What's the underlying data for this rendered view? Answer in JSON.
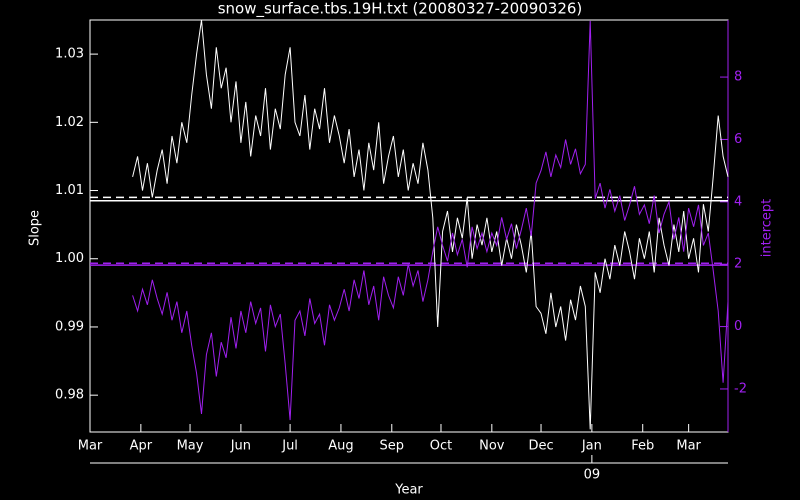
{
  "chart_data": {
    "type": "line",
    "title": "snow_surface.tbs.19H.txt (20080327-20090326)",
    "x_label": "Year",
    "y_label": "Slope",
    "y2_label": "intercept",
    "xlim": [
      0,
      389
    ],
    "xticks": [
      {
        "value": 0,
        "label": "Mar"
      },
      {
        "value": 31,
        "label": "Apr"
      },
      {
        "value": 61,
        "label": "May"
      },
      {
        "value": 92,
        "label": "Jun"
      },
      {
        "value": 122,
        "label": "Jul"
      },
      {
        "value": 153,
        "label": "Aug"
      },
      {
        "value": 184,
        "label": "Sep"
      },
      {
        "value": 214,
        "label": "Oct"
      },
      {
        "value": 245,
        "label": "Nov"
      },
      {
        "value": 275,
        "label": "Dec"
      },
      {
        "value": 306,
        "label": "Jan"
      },
      {
        "value": 337,
        "label": "Feb"
      },
      {
        "value": 365,
        "label": "Mar"
      }
    ],
    "x2ticks": [
      {
        "value": 306,
        "label": "09"
      }
    ],
    "ylim": [
      0.9746,
      1.035
    ],
    "yticks": [
      0.98,
      0.99,
      {
        "value": 1.0,
        "label": "1.00"
      },
      1.01,
      1.02,
      1.03
    ],
    "y2lim": [
      -3.38,
      9.83
    ],
    "y2ticks": [
      -2,
      0,
      2,
      4,
      6,
      8
    ],
    "y2_color": "#a020f0",
    "x": [
      26,
      29,
      32,
      35,
      38,
      41,
      44,
      47,
      50,
      53,
      56,
      59,
      62,
      65,
      68,
      71,
      74,
      77,
      80,
      83,
      86,
      89,
      92,
      95,
      98,
      101,
      104,
      107,
      110,
      113,
      116,
      119,
      122,
      125,
      128,
      131,
      134,
      137,
      140,
      143,
      146,
      149,
      152,
      155,
      158,
      161,
      164,
      167,
      170,
      173,
      176,
      179,
      182,
      185,
      188,
      191,
      194,
      197,
      200,
      203,
      206,
      209,
      212,
      215,
      218,
      221,
      224,
      227,
      230,
      233,
      236,
      239,
      242,
      245,
      248,
      251,
      254,
      257,
      260,
      263,
      266,
      269,
      272,
      275,
      278,
      281,
      284,
      287,
      290,
      293,
      296,
      299,
      302,
      305,
      308,
      311,
      314,
      317,
      320,
      323,
      326,
      329,
      332,
      335,
      338,
      341,
      344,
      347,
      350,
      353,
      356,
      359,
      362,
      365,
      368,
      371,
      374,
      377,
      380,
      383,
      386,
      389
    ],
    "series": [
      {
        "name": "Slope",
        "color": "#ffffff",
        "values": [
          1.012,
          1.015,
          1.01,
          1.014,
          1.009,
          1.013,
          1.016,
          1.011,
          1.018,
          1.014,
          1.02,
          1.017,
          1.024,
          1.03,
          1.035,
          1.027,
          1.022,
          1.031,
          1.025,
          1.028,
          1.02,
          1.026,
          1.017,
          1.023,
          1.015,
          1.021,
          1.018,
          1.025,
          1.016,
          1.022,
          1.019,
          1.027,
          1.031,
          1.02,
          1.018,
          1.024,
          1.016,
          1.022,
          1.019,
          1.025,
          1.017,
          1.021,
          1.018,
          1.014,
          1.019,
          1.012,
          1.016,
          1.01,
          1.017,
          1.013,
          1.02,
          1.011,
          1.015,
          1.018,
          1.012,
          1.016,
          1.01,
          1.014,
          1.011,
          1.017,
          1.013,
          1.006,
          0.99,
          1.004,
          1.007,
          1.001,
          1.006,
          1.003,
          1.009,
          1.0,
          1.005,
          1.002,
          1.006,
          1.001,
          1.004,
          0.999,
          1.003,
          1.0,
          1.005,
          1.002,
          0.998,
          1.004,
          0.993,
          0.992,
          0.989,
          0.995,
          0.99,
          0.993,
          0.988,
          0.994,
          0.991,
          0.996,
          0.993,
          0.975,
          0.998,
          0.995,
          1.0,
          0.997,
          1.002,
          0.999,
          1.004,
          1.001,
          0.997,
          1.003,
          1.0,
          1.004,
          0.998,
          1.006,
          1.002,
          0.999,
          1.005,
          1.001,
          1.007,
          1.0,
          1.003,
          0.998,
          1.008,
          1.004,
          1.012,
          1.021,
          1.015,
          1.012
        ]
      },
      {
        "name": "intercept",
        "color": "#a020f0",
        "axis": "y2",
        "values": [
          1.0,
          0.5,
          1.2,
          0.7,
          1.5,
          0.9,
          0.4,
          1.1,
          0.2,
          0.8,
          -0.2,
          0.5,
          -0.6,
          -1.5,
          -2.8,
          -0.9,
          -0.2,
          -1.6,
          -0.5,
          -1.0,
          0.3,
          -0.7,
          0.5,
          -0.2,
          0.8,
          0.1,
          0.6,
          -0.8,
          0.7,
          0.0,
          0.4,
          -1.2,
          -3.0,
          0.2,
          0.5,
          -0.3,
          0.9,
          0.1,
          0.4,
          -0.6,
          0.7,
          0.2,
          0.6,
          1.2,
          0.5,
          1.5,
          0.9,
          1.8,
          0.7,
          1.3,
          0.2,
          1.6,
          1.0,
          0.6,
          1.6,
          1.0,
          2.0,
          1.3,
          1.8,
          0.8,
          1.5,
          2.4,
          3.2,
          2.6,
          2.1,
          3.0,
          2.3,
          2.8,
          1.9,
          3.2,
          2.5,
          3.0,
          2.4,
          3.0,
          2.6,
          3.5,
          2.8,
          3.3,
          2.5,
          3.1,
          3.8,
          2.9,
          4.6,
          5.0,
          5.6,
          4.8,
          5.5,
          5.1,
          6.0,
          5.2,
          5.7,
          4.9,
          5.2,
          9.8,
          4.1,
          4.6,
          3.8,
          4.4,
          3.7,
          4.2,
          3.4,
          3.9,
          4.5,
          3.6,
          3.9,
          3.3,
          4.2,
          3.0,
          3.6,
          4.0,
          2.8,
          3.5,
          2.4,
          3.8,
          3.2,
          3.9,
          2.6,
          3.0,
          1.8,
          0.5,
          -1.8,
          0.8
        ]
      }
    ],
    "hlines": [
      {
        "axis": "y",
        "value": 1.0085,
        "style": "solid",
        "color": "#ffffff"
      },
      {
        "axis": "y",
        "value": 1.009,
        "style": "dashed",
        "color": "#ffffff"
      },
      {
        "axis": "y2",
        "value": 1.97,
        "style": "solid",
        "color": "#a020f0"
      },
      {
        "axis": "y2",
        "value": 2.03,
        "style": "dashed",
        "color": "#a020f0"
      }
    ]
  }
}
